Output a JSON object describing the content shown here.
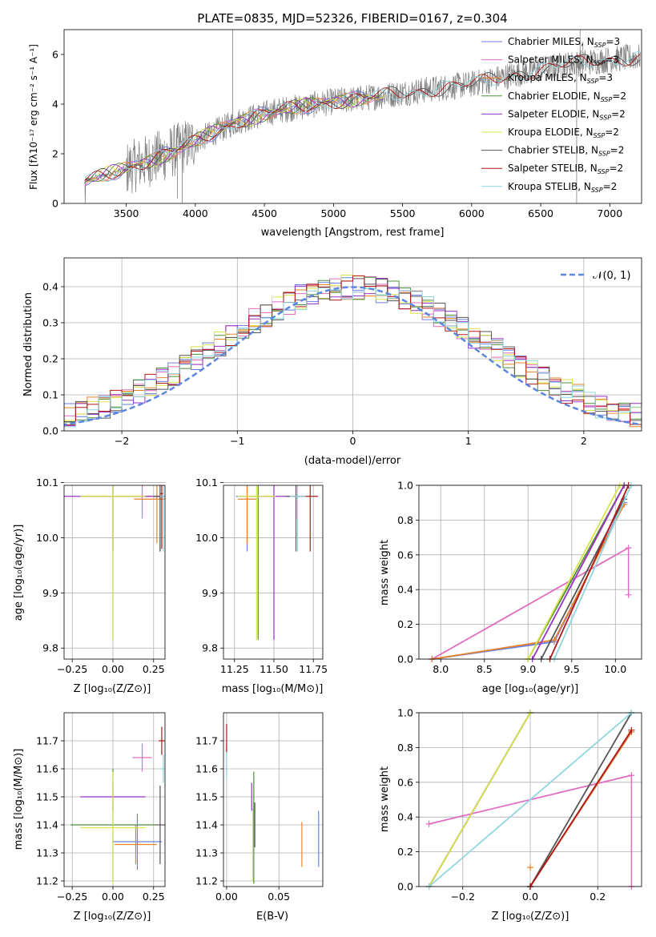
{
  "title": "PLATE=0835, MJD=52326, FIBERID=0167, z=0.304",
  "colors": {
    "chabrier_miles": "#6a7fe0",
    "salpeter_miles": "#e16cc0",
    "kroupa_miles": "#e7832b",
    "chabrier_elodie": "#4f8f3a",
    "salpeter_elodie": "#9b30c6",
    "kroupa_elodie": "#d7e44a",
    "chabrier_stelib": "#555555",
    "salpeter_stelib": "#b01818",
    "kroupa_stelib": "#8fd6e0",
    "data": "#808080",
    "normal": "#5b86df",
    "grid": "#b0b0b0"
  },
  "legend_entries": [
    {
      "pre": "Chabrier MILES, N",
      "sub": "SSP",
      "post": "=3",
      "color": "#6a7fe0"
    },
    {
      "pre": "Salpeter MILES, N",
      "sub": "SSP",
      "post": "=3",
      "color": "#e16cc0"
    },
    {
      "pre": "Kroupa MILES, N",
      "sub": "SSP",
      "post": "=3",
      "color": "#e7832b"
    },
    {
      "pre": "Chabrier ELODIE, N",
      "sub": "SSP",
      "post": "=2",
      "color": "#4f8f3a"
    },
    {
      "pre": "Salpeter ELODIE, N",
      "sub": "SSP",
      "post": "=2",
      "color": "#9b30c6"
    },
    {
      "pre": "Kroupa ELODIE, N",
      "sub": "SSP",
      "post": "=2",
      "color": "#d7e44a"
    },
    {
      "pre": "Chabrier STELIB, N",
      "sub": "SSP",
      "post": "=2",
      "color": "#555555"
    },
    {
      "pre": "Salpeter STELIB, N",
      "sub": "SSP",
      "post": "=2",
      "color": "#b01818"
    },
    {
      "pre": "Kroupa STELIB, N",
      "sub": "SSP",
      "post": "=2",
      "color": "#8fd6e0"
    }
  ],
  "chart_data": [
    {
      "id": "spectrum",
      "type": "line",
      "xlabel": "wavelength [Angstrom, rest frame]",
      "ylabel": "Flux [fλ10⁻¹⁷ erg cm⁻² s⁻¹ A⁻¹]",
      "xlim": [
        3050,
        7230
      ],
      "ylim": [
        0,
        7
      ],
      "xticks": [
        3500,
        4000,
        4500,
        5000,
        5500,
        6000,
        6500,
        7000
      ],
      "yticks": [
        0,
        2,
        4,
        6
      ],
      "legend": "right",
      "continuum": [
        [
          3200,
          0.9
        ],
        [
          3500,
          1.4
        ],
        [
          3800,
          2.0
        ],
        [
          4000,
          2.5
        ],
        [
          4300,
          3.3
        ],
        [
          4600,
          3.75
        ],
        [
          5000,
          4.1
        ],
        [
          5300,
          4.3
        ],
        [
          5700,
          4.6
        ],
        [
          6000,
          4.8
        ],
        [
          6400,
          5.3
        ],
        [
          6700,
          5.6
        ],
        [
          7000,
          5.8
        ],
        [
          7200,
          5.9
        ]
      ]
    },
    {
      "id": "residuals",
      "type": "line",
      "xlabel": "(data-model)/error",
      "ylabel": "Normed distribution",
      "xlim": [
        -2.5,
        2.5
      ],
      "ylim": [
        0,
        0.48
      ],
      "xticks": [
        -2,
        -1,
        0,
        1,
        2
      ],
      "yticks": [
        0.0,
        0.1,
        0.2,
        0.3,
        0.4
      ],
      "legend_label": "𝒩(0, 1)",
      "legend": "top-right",
      "series": [
        {
          "name": "𝒩(0, 1)",
          "mean": 0,
          "sd": 1
        }
      ]
    },
    {
      "id": "age_vs_Z",
      "type": "scatter",
      "xlabel": "Z [log₁₀(Z/Z⊙)]",
      "ylabel": "age [log₁₀(age/yr)]",
      "xlim": [
        -0.3,
        0.32
      ],
      "ylim": [
        9.78,
        10.095
      ],
      "xticks": [
        -0.25,
        0.0,
        0.25
      ],
      "yticks": [
        9.8,
        9.9,
        10.0,
        10.1
      ],
      "points": [
        {
          "model": "chabrier_miles",
          "x": 0.29,
          "y": 10.075,
          "xerr": 0.02,
          "yerr": 0.1
        },
        {
          "model": "salpeter_miles",
          "x": 0.18,
          "y": 10.075,
          "xerr": 0.06,
          "yerr": 0.04
        },
        {
          "model": "kroupa_miles",
          "x": 0.27,
          "y": 10.07,
          "xerr": 0.14,
          "yerr": 0.08
        },
        {
          "model": "chabrier_elodie",
          "x": 0.0,
          "y": 10.075,
          "xerr": 0.2,
          "yerr": 0.26
        },
        {
          "model": "salpeter_elodie",
          "x": 0.0,
          "y": 10.075,
          "xerr": 0.32,
          "yerr": 0.1
        },
        {
          "model": "kroupa_elodie",
          "x": 0.0,
          "y": 10.075,
          "xerr": 0.2,
          "yerr": 0.26
        },
        {
          "model": "chabrier_stelib",
          "x": 0.29,
          "y": 10.075,
          "xerr": 0.04,
          "yerr": 0.1
        },
        {
          "model": "salpeter_stelib",
          "x": 0.3,
          "y": 10.08,
          "xerr": 0.01,
          "yerr": 0.1
        },
        {
          "model": "kroupa_stelib",
          "x": 0.31,
          "y": 10.075,
          "xerr": 0.02,
          "yerr": 0.1
        }
      ]
    },
    {
      "id": "age_vs_mass",
      "type": "scatter",
      "xlabel": "mass [log₁₀(M/M⊙)]",
      "ylabel": "",
      "xlim": [
        11.18,
        11.81
      ],
      "ylim": [
        9.78,
        10.095
      ],
      "xticks": [
        11.25,
        11.5,
        11.75
      ],
      "yticks": [
        9.8,
        9.9,
        10.0,
        10.1
      ],
      "points": [
        {
          "model": "chabrier_miles",
          "x": 11.33,
          "y": 10.075,
          "xerr": 0.07,
          "yerr": 0.1
        },
        {
          "model": "salpeter_miles",
          "x": 11.64,
          "y": 10.075,
          "xerr": 0.05,
          "yerr": 0.04
        },
        {
          "model": "kroupa_miles",
          "x": 11.33,
          "y": 10.07,
          "xerr": 0.06,
          "yerr": 0.08
        },
        {
          "model": "chabrier_elodie",
          "x": 11.4,
          "y": 10.075,
          "xerr": 0.05,
          "yerr": 0.26
        },
        {
          "model": "salpeter_elodie",
          "x": 11.5,
          "y": 10.075,
          "xerr": 0.1,
          "yerr": 0.26
        },
        {
          "model": "kroupa_elodie",
          "x": 11.39,
          "y": 10.075,
          "xerr": 0.12,
          "yerr": 0.26
        },
        {
          "model": "chabrier_stelib",
          "x": 11.64,
          "y": 10.075,
          "xerr": 0.06,
          "yerr": 0.1
        },
        {
          "model": "salpeter_stelib",
          "x": 11.73,
          "y": 10.075,
          "xerr": 0.05,
          "yerr": 0.1
        },
        {
          "model": "kroupa_stelib",
          "x": 11.65,
          "y": 10.075,
          "xerr": 0.05,
          "yerr": 0.1
        }
      ]
    },
    {
      "id": "mass_weight_vs_age",
      "type": "line",
      "xlabel": "age [log₁₀(age/yr)]",
      "ylabel": "mass weight",
      "xlim": [
        7.75,
        10.3
      ],
      "ylim": [
        0,
        1
      ],
      "xticks": [
        8.0,
        8.5,
        9.0,
        9.5,
        10.0
      ],
      "yticks": [
        0.0,
        0.2,
        0.4,
        0.6,
        0.8,
        1.0
      ],
      "series": [
        {
          "model": "chabrier_miles",
          "x": [
            7.9,
            9.3,
            10.1
          ],
          "y": [
            0.0,
            0.1,
            0.9
          ]
        },
        {
          "model": "salpeter_miles",
          "x": [
            7.9,
            10.15
          ],
          "y": [
            0.0,
            0.64
          ]
        },
        {
          "model": "kroupa_miles",
          "x": [
            7.9,
            9.3,
            10.1
          ],
          "y": [
            0.0,
            0.11,
            0.89
          ]
        },
        {
          "model": "chabrier_elodie",
          "x": [
            9.0,
            10.1
          ],
          "y": [
            0.0,
            1.0
          ]
        },
        {
          "model": "salpeter_elodie",
          "x": [
            9.05,
            10.1
          ],
          "y": [
            0.0,
            1.0
          ]
        },
        {
          "model": "kroupa_elodie",
          "x": [
            9.0,
            10.05
          ],
          "y": [
            0.0,
            1.0
          ]
        },
        {
          "model": "chabrier_stelib",
          "x": [
            9.15,
            10.1
          ],
          "y": [
            0.0,
            0.92
          ]
        },
        {
          "model": "salpeter_stelib",
          "x": [
            9.25,
            10.15
          ],
          "y": [
            0.0,
            1.0
          ]
        },
        {
          "model": "kroupa_stelib",
          "x": [
            9.3,
            10.18
          ],
          "y": [
            0.0,
            1.0
          ]
        }
      ],
      "errorbar": {
        "model": "salpeter_miles",
        "x": 10.15,
        "y0": 0.37,
        "y1": 0.64
      }
    },
    {
      "id": "mass_vs_Z",
      "type": "scatter",
      "xlabel": "Z [log₁₀(Z/Z⊙)]",
      "ylabel": "mass [log₁₀(M/M⊙)]",
      "xlim": [
        -0.3,
        0.32
      ],
      "ylim": [
        11.18,
        11.8
      ],
      "xticks": [
        -0.25,
        0.0,
        0.25
      ],
      "yticks": [
        11.2,
        11.3,
        11.4,
        11.5,
        11.6,
        11.7
      ],
      "points": [
        {
          "model": "chabrier_miles",
          "x": 0.15,
          "y": 11.34,
          "xerr": 0.15,
          "yerr": 0.1
        },
        {
          "model": "salpeter_miles",
          "x": 0.18,
          "y": 11.64,
          "xerr": 0.06,
          "yerr": 0.05
        },
        {
          "model": "kroupa_miles",
          "x": 0.14,
          "y": 11.33,
          "xerr": 0.13,
          "yerr": 0.07
        },
        {
          "model": "chabrier_elodie",
          "x": 0.0,
          "y": 11.4,
          "xerr": 0.26,
          "yerr": 0.2
        },
        {
          "model": "salpeter_elodie",
          "x": 0.0,
          "y": 11.5,
          "xerr": 0.2,
          "yerr": 0.05
        },
        {
          "model": "kroupa_elodie",
          "x": 0.0,
          "y": 11.39,
          "xerr": 0.2,
          "yerr": 0.2
        },
        {
          "model": "chabrier_stelib",
          "x": 0.29,
          "y": 11.4,
          "xerr": 0.03,
          "yerr": 0.14
        },
        {
          "model": "salpeter_stelib",
          "x": 0.3,
          "y": 11.7,
          "xerr": 0.02,
          "yerr": 0.05
        },
        {
          "model": "kroupa_stelib",
          "x": 0.31,
          "y": 11.6,
          "xerr": 0.02,
          "yerr": 0.05
        }
      ]
    },
    {
      "id": "mass_vs_ebv",
      "type": "scatter",
      "xlabel": "E(B-V)",
      "ylabel": "",
      "xlim": [
        -0.003,
        0.092
      ],
      "ylim": [
        11.18,
        11.8
      ],
      "xticks": [
        0.0,
        0.05
      ],
      "yticks": [
        11.2,
        11.3,
        11.4,
        11.5,
        11.6,
        11.7
      ],
      "points": [
        {
          "model": "chabrier_miles",
          "x": 0.088,
          "y": 11.35,
          "yerr": 0.1
        },
        {
          "model": "salpeter_miles",
          "x": 0.0,
          "y": 11.63,
          "yerr": 0.05
        },
        {
          "model": "kroupa_miles",
          "x": 0.072,
          "y": 11.33,
          "yerr": 0.08
        },
        {
          "model": "chabrier_elodie",
          "x": 0.026,
          "y": 11.39,
          "yerr": 0.2
        },
        {
          "model": "salpeter_elodie",
          "x": 0.024,
          "y": 11.5,
          "yerr": 0.05
        },
        {
          "model": "kroupa_elodie",
          "x": 0.025,
          "y": 11.33,
          "yerr": 0.13
        },
        {
          "model": "chabrier_stelib",
          "x": 0.027,
          "y": 11.4,
          "yerr": 0.08
        },
        {
          "model": "salpeter_stelib",
          "x": 0.0,
          "y": 11.71,
          "yerr": 0.05
        },
        {
          "model": "kroupa_stelib",
          "x": 0.0,
          "y": 11.61,
          "yerr": 0.05
        }
      ]
    },
    {
      "id": "mass_weight_vs_Z",
      "type": "line",
      "xlabel": "Z [log₁₀(Z/Z⊙)]",
      "ylabel": "mass weight",
      "xlim": [
        -0.33,
        0.33
      ],
      "ylim": [
        0,
        1
      ],
      "xticks": [
        -0.2,
        0.0,
        0.2
      ],
      "yticks": [
        0.0,
        0.2,
        0.4,
        0.6,
        0.8,
        1.0
      ],
      "series": [
        {
          "model": "chabrier_miles",
          "x": [
            0.0,
            0.3
          ],
          "y": [
            0.0,
            0.89
          ]
        },
        {
          "model": "salpeter_miles",
          "x": [
            -0.3,
            0.3
          ],
          "y": [
            0.36,
            0.64
          ]
        },
        {
          "model": "kroupa_miles",
          "x": [
            0.0,
            0.3
          ],
          "y": [
            0.0,
            0.89
          ]
        },
        {
          "model": "chabrier_elodie",
          "x": [
            -0.3,
            0.0
          ],
          "y": [
            0.0,
            1.0
          ]
        },
        {
          "model": "salpeter_elodie",
          "x": [
            -0.3,
            0.0
          ],
          "y": [
            0.0,
            1.0
          ]
        },
        {
          "model": "kroupa_elodie",
          "x": [
            -0.3,
            0.0
          ],
          "y": [
            0.0,
            1.0
          ]
        },
        {
          "model": "chabrier_stelib",
          "x": [
            0.0,
            0.3
          ],
          "y": [
            0.0,
            1.0
          ]
        },
        {
          "model": "salpeter_stelib",
          "x": [
            0.0,
            0.3
          ],
          "y": [
            0.0,
            0.9
          ]
        },
        {
          "model": "kroupa_stelib",
          "x": [
            -0.3,
            0.3
          ],
          "y": [
            0.0,
            1.0
          ]
        }
      ],
      "errorbar": {
        "model": "salpeter_miles",
        "x": 0.3,
        "y0": 0.0,
        "y1": 0.64
      },
      "extra_marks": [
        {
          "model": "kroupa_miles",
          "x": 0.0,
          "y": 0.11
        }
      ]
    }
  ]
}
